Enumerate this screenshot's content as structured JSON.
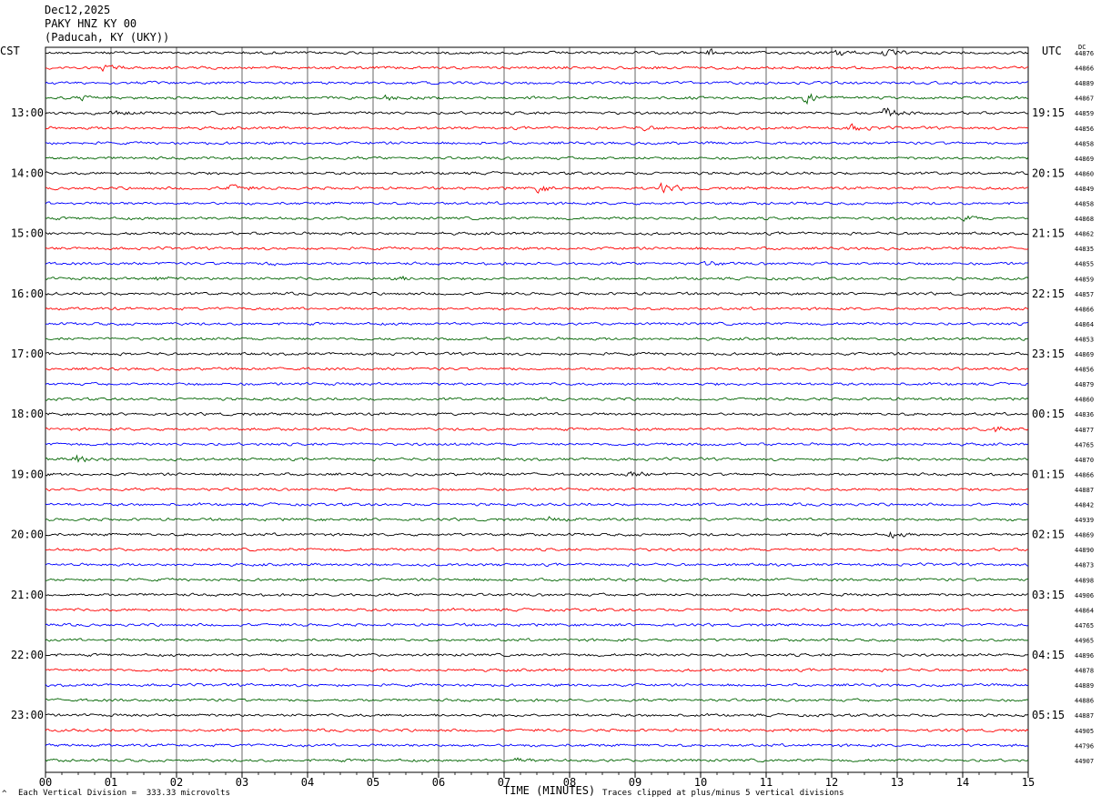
{
  "header": {
    "date": "Dec12,2025",
    "station": "PAKY HNZ KY 00",
    "location": "(Paducah, KY (UKY))"
  },
  "left_axis_label": "CST",
  "right_axis_label": "UTC",
  "dc_label": "DC",
  "footer": {
    "scale_note": "Each Vertical Division =  333.33 microvolts",
    "clip_note": "Traces clipped at plus/minus 5 vertical divisions",
    "corner_mark": "^"
  },
  "trace_colors": [
    "#000000",
    "#ff0000",
    "#0000ff",
    "#006400"
  ],
  "chart_data": {
    "type": "line",
    "xlabel": "TIME (MINUTES)",
    "x_ticks": [
      "00",
      "01",
      "02",
      "03",
      "04",
      "05",
      "06",
      "07",
      "08",
      "09",
      "10",
      "11",
      "12",
      "13",
      "14",
      "15"
    ],
    "xlim": [
      0,
      15
    ],
    "left_ticks": [
      "13:00",
      "14:00",
      "15:00",
      "16:00",
      "17:00",
      "18:00",
      "19:00",
      "20:00",
      "21:00",
      "22:00",
      "23:00"
    ],
    "right_ticks": [
      "19:15",
      "20:15",
      "21:15",
      "22:15",
      "23:15",
      "00:15",
      "01:15",
      "02:15",
      "03:15",
      "04:15",
      "05:15"
    ],
    "trace_count": 48,
    "dc_offsets": [
      "44876",
      "44866",
      "44889",
      "44867",
      "44859",
      "44856",
      "44858",
      "44869",
      "44860",
      "44849",
      "44858",
      "44868",
      "44862",
      "44835",
      "44855",
      "44859",
      "44857",
      "44866",
      "44864",
      "44853",
      "44869",
      "44856",
      "44879",
      "44860",
      "44836",
      "44877",
      "44765",
      "44870",
      "44866",
      "44887",
      "44842",
      "44939",
      "44869",
      "44890",
      "44873",
      "44898",
      "44906",
      "44864",
      "44765",
      "44965",
      "44896",
      "44878",
      "44889",
      "44886",
      "44887",
      "44905",
      "44796",
      "44907"
    ],
    "events": [
      {
        "row": 0,
        "minute": 10.1,
        "amp": 6
      },
      {
        "row": 0,
        "minute": 12.1,
        "amp": 5
      },
      {
        "row": 0,
        "minute": 12.8,
        "amp": 5
      },
      {
        "row": 1,
        "minute": 0.9,
        "amp": 5
      },
      {
        "row": 3,
        "minute": 5.2,
        "amp": 6
      },
      {
        "row": 3,
        "minute": 11.6,
        "amp": 9
      },
      {
        "row": 3,
        "minute": 0.5,
        "amp": 4
      },
      {
        "row": 4,
        "minute": 12.8,
        "amp": 9
      },
      {
        "row": 4,
        "minute": 1.0,
        "amp": 4
      },
      {
        "row": 5,
        "minute": 12.3,
        "amp": 6
      },
      {
        "row": 5,
        "minute": 9.1,
        "amp": 4
      },
      {
        "row": 9,
        "minute": 2.8,
        "amp": 7
      },
      {
        "row": 9,
        "minute": 7.5,
        "amp": 6
      },
      {
        "row": 9,
        "minute": 9.4,
        "amp": 8
      },
      {
        "row": 11,
        "minute": 14.0,
        "amp": 5
      },
      {
        "row": 14,
        "minute": 3.4,
        "amp": 4
      },
      {
        "row": 14,
        "minute": 10.1,
        "amp": 4
      },
      {
        "row": 15,
        "minute": 5.3,
        "amp": 5
      },
      {
        "row": 15,
        "minute": 1.7,
        "amp": 3
      },
      {
        "row": 25,
        "minute": 14.5,
        "amp": 5
      },
      {
        "row": 27,
        "minute": 0.45,
        "amp": 9
      },
      {
        "row": 28,
        "minute": 8.9,
        "amp": 5
      },
      {
        "row": 31,
        "minute": 7.7,
        "amp": 4
      },
      {
        "row": 32,
        "minute": 12.9,
        "amp": 4
      },
      {
        "row": 47,
        "minute": 7.2,
        "amp": 3
      }
    ]
  }
}
